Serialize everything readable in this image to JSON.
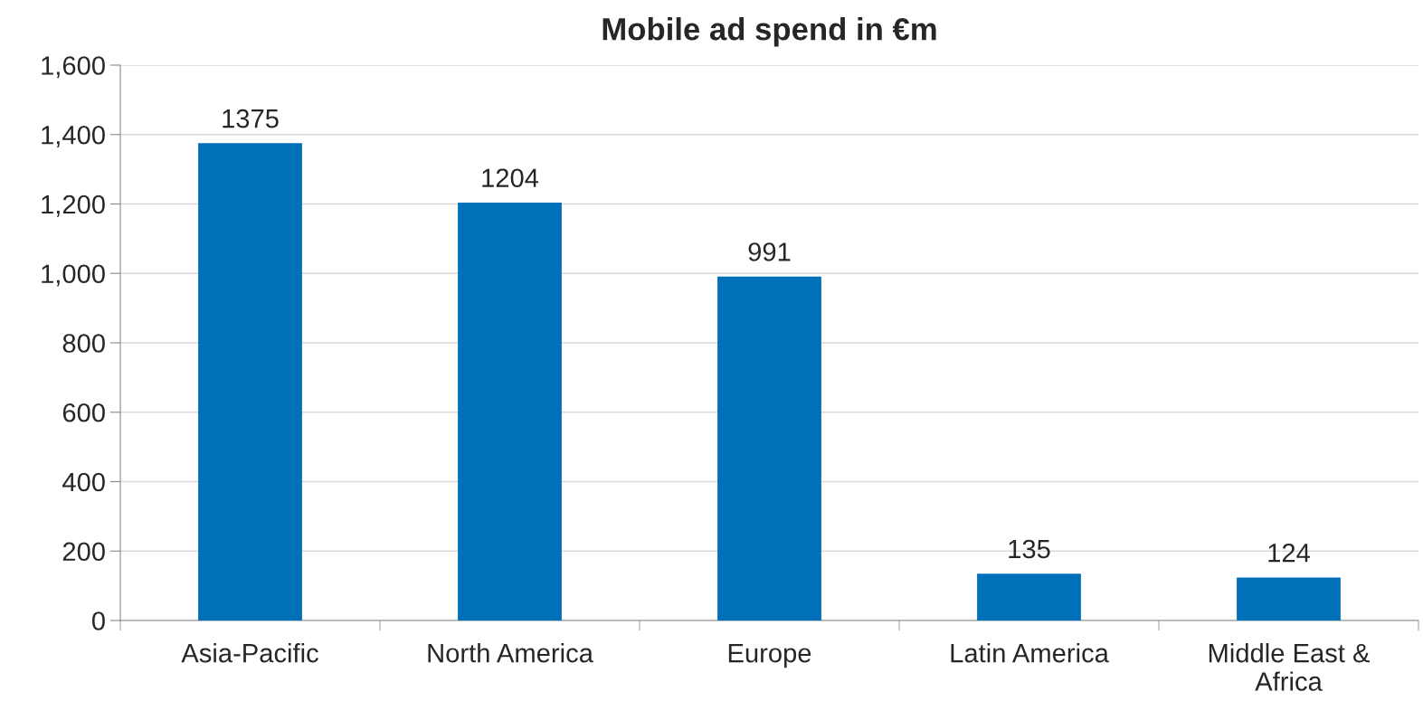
{
  "chart_data": {
    "type": "bar",
    "title": "Mobile ad spend in €m",
    "categories": [
      "Asia-Pacific",
      "North America",
      "Europe",
      "Latin America",
      "Middle East &\nAfrica"
    ],
    "values": [
      1375,
      1204,
      991,
      135,
      124
    ],
    "color": "#0070b8",
    "ylim": [
      0,
      1600
    ],
    "yticks": [
      {
        "value": 0,
        "label": "0"
      },
      {
        "value": 200,
        "label": "200"
      },
      {
        "value": 400,
        "label": "400"
      },
      {
        "value": 600,
        "label": "600"
      },
      {
        "value": 800,
        "label": "800"
      },
      {
        "value": 1000,
        "label": "1,000"
      },
      {
        "value": 1200,
        "label": "1,200"
      },
      {
        "value": 1400,
        "label": "1,400"
      },
      {
        "value": 1600,
        "label": "1,600"
      }
    ],
    "grid": "y",
    "data_labels": true
  }
}
